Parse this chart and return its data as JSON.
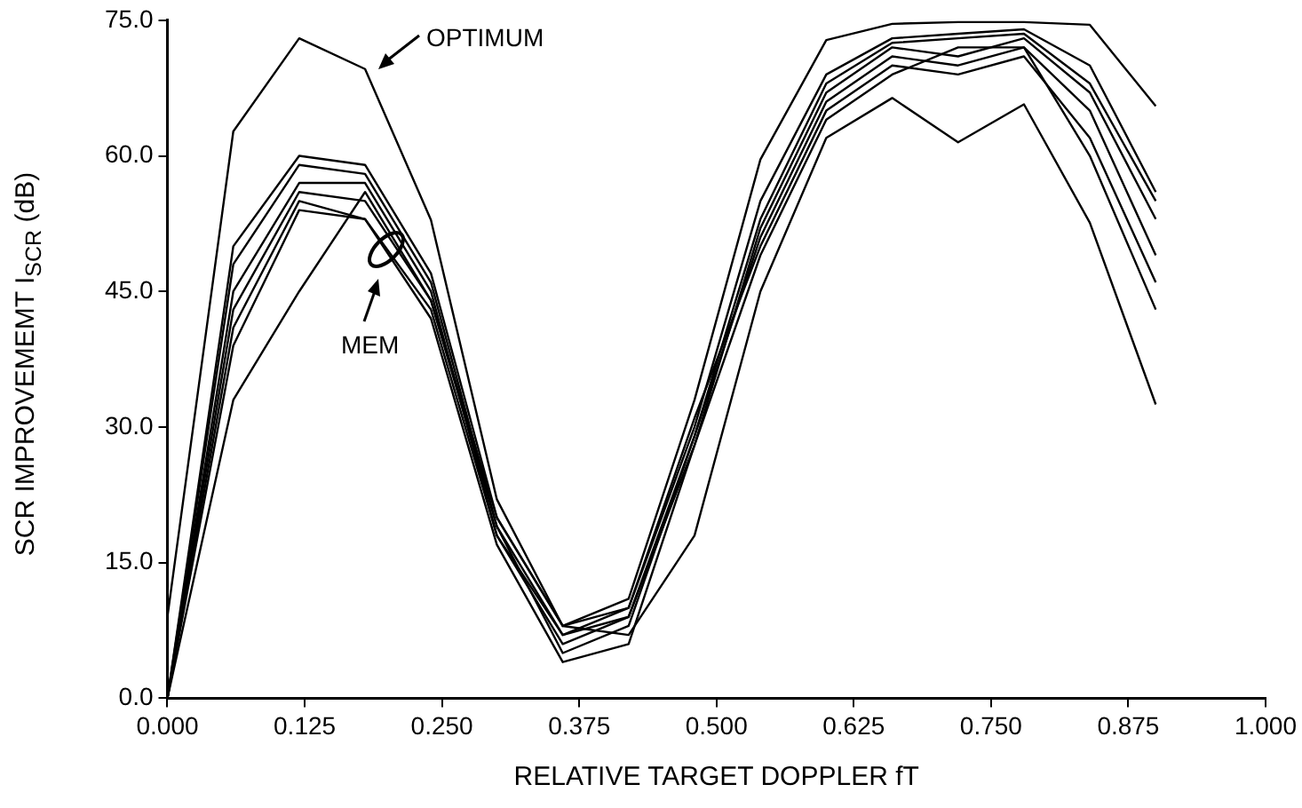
{
  "chart_data": {
    "type": "line",
    "xlabel": "RELATIVE TARGET DOPPLER fT",
    "ylabel": "SCR IMPROVEMEMT I$_{SCR}$ (dB)",
    "x": [
      0,
      0.06,
      0.12,
      0.18,
      0.24,
      0.3,
      0.36,
      0.42,
      0.48,
      0.54,
      0.6,
      0.66,
      0.72,
      0.78,
      0.84,
      0.9
    ],
    "xlim": [
      0,
      1
    ],
    "ylim": [
      0,
      75
    ],
    "xticks": [
      {
        "value": 0,
        "label": "0.000"
      },
      {
        "value": 0.125,
        "label": "0.125"
      },
      {
        "value": 0.25,
        "label": "0.250"
      },
      {
        "value": 0.375,
        "label": "0.375"
      },
      {
        "value": 0.5,
        "label": "0.500"
      },
      {
        "value": 0.625,
        "label": "0.625"
      },
      {
        "value": 0.75,
        "label": "0.750"
      },
      {
        "value": 0.875,
        "label": "0.875"
      },
      {
        "value": 1,
        "label": "1.000"
      }
    ],
    "yticks": [
      {
        "value": 0,
        "label": "0.0"
      },
      {
        "value": 15,
        "label": "15.0"
      },
      {
        "value": 30,
        "label": "30.0"
      },
      {
        "value": 45,
        "label": "45.0"
      },
      {
        "value": 60,
        "label": "60.0"
      },
      {
        "value": 75,
        "label": "75.0"
      }
    ],
    "legend": false,
    "marker": "none",
    "line_style": "solid",
    "series": [
      {
        "color": "#000000",
        "values": [
          9,
          62.7,
          73,
          69.6,
          52.9,
          22,
          8,
          11,
          33,
          59.6,
          72.8,
          74.6,
          74.8,
          74.8,
          74.5,
          65.5
        ]
      },
      {
        "color": "#000000",
        "values": [
          0,
          50,
          60,
          59,
          47,
          20,
          8,
          10,
          30,
          55,
          69,
          73,
          73.5,
          74,
          70,
          56
        ]
      },
      {
        "color": "#000000",
        "values": [
          0,
          48,
          59,
          58,
          46,
          19,
          7,
          9,
          29,
          53,
          68,
          72.5,
          73,
          73.5,
          68,
          55
        ]
      },
      {
        "color": "#000000",
        "values": [
          0,
          45,
          57,
          57,
          45,
          18,
          6,
          9,
          28,
          52,
          67,
          72,
          71,
          73,
          67,
          53
        ]
      },
      {
        "color": "#000000",
        "values": [
          0,
          43,
          56,
          55,
          44,
          19,
          5,
          8,
          29,
          51,
          66,
          71,
          70,
          72,
          65,
          49
        ]
      },
      {
        "color": "#000000",
        "values": [
          0,
          41,
          55,
          53,
          43,
          18,
          7,
          10,
          31,
          50,
          65,
          70,
          69,
          71,
          62,
          46
        ]
      },
      {
        "color": "#000000",
        "values": [
          0,
          39,
          54,
          53,
          42,
          17,
          4,
          6,
          28,
          49,
          64,
          69,
          72,
          72,
          60,
          43
        ]
      },
      {
        "color": "#000000",
        "values": [
          0,
          33,
          45,
          56,
          44,
          20,
          8,
          7,
          18,
          45,
          62,
          66.4,
          61.5,
          65.7,
          52.6,
          32.5
        ]
      }
    ],
    "annotations": [
      "OPTIMUM",
      "MEM"
    ]
  }
}
